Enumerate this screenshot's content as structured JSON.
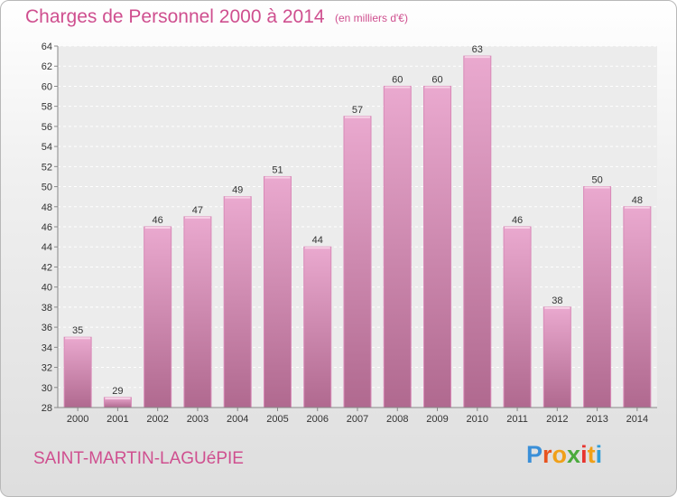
{
  "header": {
    "title": "Charges de Personnel 2000 à 2014",
    "unit": "(en milliers d'€)"
  },
  "footer": {
    "place": "SAINT-MARTIN-LAGUéPIE",
    "logo_letters": [
      "P",
      "r",
      "o",
      "x",
      "i",
      "t",
      "i"
    ],
    "logo_colors": [
      "#3a8fd8",
      "#e8531f",
      "#f0a019",
      "#4aaa3c",
      "#e7332e",
      "#f0a019",
      "#2f9dd8"
    ]
  },
  "colors": {
    "title": "#cf4f8f",
    "bar_top": "#eaa9cf",
    "bar_bottom": "#b0698f",
    "bar_edge": "#d98ab8"
  },
  "chart_data": {
    "type": "bar",
    "title": "Charges de Personnel 2000 à 2014",
    "subtitle": "(en milliers d'€)",
    "categories": [
      "2000",
      "2001",
      "2002",
      "2003",
      "2004",
      "2005",
      "2006",
      "2007",
      "2008",
      "2009",
      "2010",
      "2011",
      "2012",
      "2013",
      "2014"
    ],
    "values": [
      35,
      29,
      46,
      47,
      49,
      51,
      44,
      57,
      60,
      60,
      63,
      46,
      38,
      50,
      48
    ],
    "xlabel": "",
    "ylabel": "",
    "ylim": [
      28,
      64
    ],
    "yticks": [
      28,
      30,
      32,
      34,
      36,
      38,
      40,
      42,
      44,
      46,
      48,
      50,
      52,
      54,
      56,
      58,
      60,
      62,
      64
    ],
    "grid": true,
    "legend": "none"
  }
}
